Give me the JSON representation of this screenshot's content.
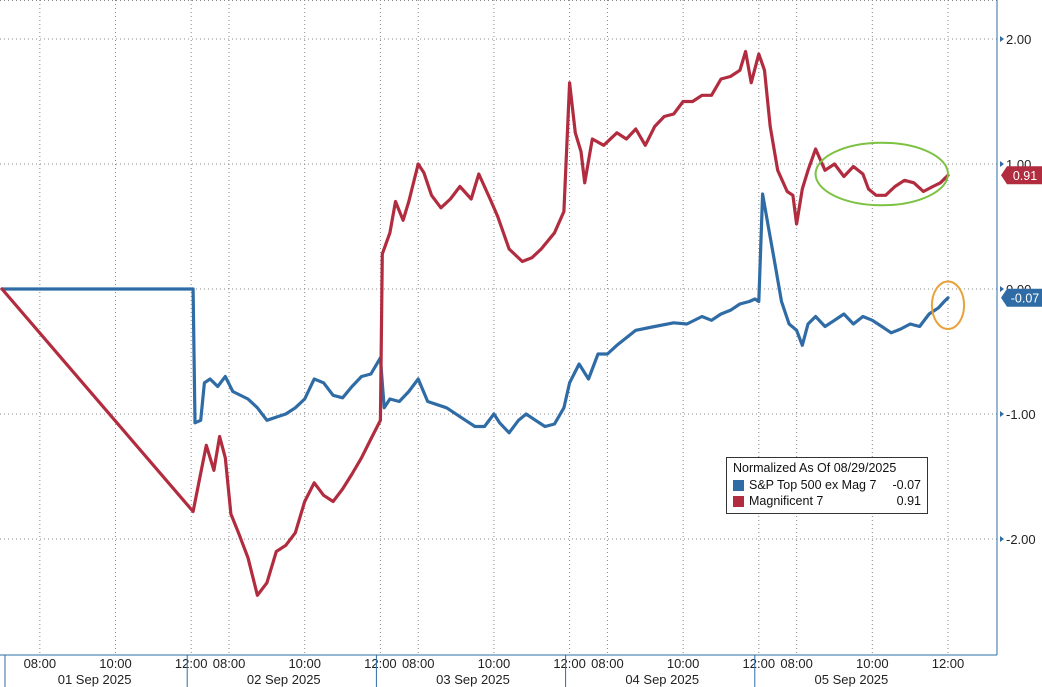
{
  "chart_data": {
    "type": "line",
    "legend": {
      "title": "Normalized As Of 08/29/2025",
      "placement": "bottom-right"
    },
    "y_axis": {
      "side": "right",
      "ylim": [
        -2.9,
        2.3
      ],
      "ticks": [
        {
          "value": 2,
          "label": "2.00"
        },
        {
          "value": 1,
          "label": "1.00"
        },
        {
          "value": 0,
          "label": "0.00"
        },
        {
          "value": -1,
          "label": "-1.00"
        },
        {
          "value": -2,
          "label": "-2.00"
        }
      ]
    },
    "x_axis": {
      "xlim": [
        0,
        5
      ],
      "time_ticks": [
        {
          "x": 0.2,
          "label": "08:00"
        },
        {
          "x": 0.6,
          "label": "10:00"
        },
        {
          "x": 1.0,
          "label": "12:00"
        },
        {
          "x": 1.2,
          "label": "08:00"
        },
        {
          "x": 1.6,
          "label": "10:00"
        },
        {
          "x": 2.0,
          "label": "12:00"
        },
        {
          "x": 2.2,
          "label": "08:00"
        },
        {
          "x": 2.6,
          "label": "10:00"
        },
        {
          "x": 3.0,
          "label": "12:00"
        },
        {
          "x": 3.2,
          "label": "08:00"
        },
        {
          "x": 3.6,
          "label": "10:00"
        },
        {
          "x": 4.0,
          "label": "12:00"
        },
        {
          "x": 4.2,
          "label": "08:00"
        },
        {
          "x": 4.6,
          "label": "10:00"
        },
        {
          "x": 5.0,
          "label": "12:00"
        }
      ],
      "day_labels": [
        {
          "x": 0.5,
          "label": "01 Sep 2025"
        },
        {
          "x": 1.5,
          "label": "02 Sep 2025"
        },
        {
          "x": 2.5,
          "label": "03 Sep 2025"
        },
        {
          "x": 3.5,
          "label": "04 Sep 2025"
        },
        {
          "x": 4.5,
          "label": "05 Sep 2025"
        }
      ]
    },
    "grid": true,
    "series": [
      {
        "name": "S&P Top 500 ex Mag 7",
        "color": "#2f6ca6",
        "last_value": -0.07,
        "last_label": "-0.07",
        "points": [
          [
            0,
            0
          ],
          [
            1.01,
            0
          ],
          [
            1.02,
            -1.07
          ],
          [
            1.05,
            -1.05
          ],
          [
            1.07,
            -0.75
          ],
          [
            1.1,
            -0.72
          ],
          [
            1.14,
            -0.78
          ],
          [
            1.18,
            -0.7
          ],
          [
            1.22,
            -0.82
          ],
          [
            1.3,
            -0.88
          ],
          [
            1.35,
            -0.95
          ],
          [
            1.4,
            -1.05
          ],
          [
            1.46,
            -1.02
          ],
          [
            1.5,
            -1.0
          ],
          [
            1.55,
            -0.95
          ],
          [
            1.6,
            -0.88
          ],
          [
            1.65,
            -0.72
          ],
          [
            1.7,
            -0.75
          ],
          [
            1.75,
            -0.85
          ],
          [
            1.8,
            -0.87
          ],
          [
            1.85,
            -0.78
          ],
          [
            1.9,
            -0.7
          ],
          [
            1.95,
            -0.68
          ],
          [
            2.0,
            -0.55
          ],
          [
            2.02,
            -0.95
          ],
          [
            2.05,
            -0.88
          ],
          [
            2.1,
            -0.9
          ],
          [
            2.15,
            -0.82
          ],
          [
            2.2,
            -0.72
          ],
          [
            2.25,
            -0.9
          ],
          [
            2.35,
            -0.95
          ],
          [
            2.45,
            -1.05
          ],
          [
            2.5,
            -1.1
          ],
          [
            2.55,
            -1.1
          ],
          [
            2.6,
            -1.0
          ],
          [
            2.63,
            -1.07
          ],
          [
            2.68,
            -1.15
          ],
          [
            2.73,
            -1.05
          ],
          [
            2.77,
            -1.0
          ],
          [
            2.82,
            -1.05
          ],
          [
            2.87,
            -1.1
          ],
          [
            2.92,
            -1.08
          ],
          [
            2.97,
            -0.95
          ],
          [
            3.0,
            -0.75
          ],
          [
            3.05,
            -0.6
          ],
          [
            3.1,
            -0.72
          ],
          [
            3.15,
            -0.52
          ],
          [
            3.2,
            -0.52
          ],
          [
            3.25,
            -0.45
          ],
          [
            3.35,
            -0.33
          ],
          [
            3.45,
            -0.3
          ],
          [
            3.55,
            -0.27
          ],
          [
            3.62,
            -0.28
          ],
          [
            3.7,
            -0.22
          ],
          [
            3.75,
            -0.25
          ],
          [
            3.8,
            -0.2
          ],
          [
            3.85,
            -0.17
          ],
          [
            3.9,
            -0.12
          ],
          [
            3.95,
            -0.1
          ],
          [
            3.98,
            -0.08
          ],
          [
            4.0,
            -0.1
          ],
          [
            4.02,
            0.76
          ],
          [
            4.05,
            0.5
          ],
          [
            4.08,
            0.25
          ],
          [
            4.12,
            -0.1
          ],
          [
            4.16,
            -0.28
          ],
          [
            4.2,
            -0.33
          ],
          [
            4.23,
            -0.45
          ],
          [
            4.26,
            -0.28
          ],
          [
            4.3,
            -0.22
          ],
          [
            4.35,
            -0.3
          ],
          [
            4.4,
            -0.25
          ],
          [
            4.45,
            -0.2
          ],
          [
            4.5,
            -0.28
          ],
          [
            4.55,
            -0.22
          ],
          [
            4.6,
            -0.25
          ],
          [
            4.65,
            -0.3
          ],
          [
            4.7,
            -0.35
          ],
          [
            4.75,
            -0.32
          ],
          [
            4.8,
            -0.28
          ],
          [
            4.85,
            -0.3
          ],
          [
            4.9,
            -0.2
          ],
          [
            4.95,
            -0.15
          ],
          [
            4.98,
            -0.1
          ],
          [
            5.0,
            -0.07
          ]
        ]
      },
      {
        "name": "Magnificent 7",
        "color": "#b22c3f",
        "last_value": 0.91,
        "last_label": "0.91",
        "points": [
          [
            0,
            0
          ],
          [
            1.01,
            -1.78
          ],
          [
            1.04,
            -1.55
          ],
          [
            1.08,
            -1.25
          ],
          [
            1.12,
            -1.45
          ],
          [
            1.15,
            -1.18
          ],
          [
            1.18,
            -1.35
          ],
          [
            1.21,
            -1.8
          ],
          [
            1.25,
            -1.95
          ],
          [
            1.3,
            -2.15
          ],
          [
            1.35,
            -2.45
          ],
          [
            1.4,
            -2.35
          ],
          [
            1.45,
            -2.1
          ],
          [
            1.5,
            -2.05
          ],
          [
            1.55,
            -1.95
          ],
          [
            1.6,
            -1.7
          ],
          [
            1.65,
            -1.55
          ],
          [
            1.7,
            -1.65
          ],
          [
            1.75,
            -1.7
          ],
          [
            1.8,
            -1.6
          ],
          [
            1.85,
            -1.48
          ],
          [
            1.9,
            -1.35
          ],
          [
            1.95,
            -1.2
          ],
          [
            2.0,
            -1.05
          ],
          [
            2.01,
            0.28
          ],
          [
            2.05,
            0.45
          ],
          [
            2.08,
            0.7
          ],
          [
            2.12,
            0.55
          ],
          [
            2.15,
            0.7
          ],
          [
            2.2,
            1.0
          ],
          [
            2.23,
            0.93
          ],
          [
            2.27,
            0.75
          ],
          [
            2.32,
            0.65
          ],
          [
            2.37,
            0.72
          ],
          [
            2.42,
            0.82
          ],
          [
            2.48,
            0.72
          ],
          [
            2.52,
            0.92
          ],
          [
            2.58,
            0.72
          ],
          [
            2.62,
            0.58
          ],
          [
            2.68,
            0.32
          ],
          [
            2.75,
            0.22
          ],
          [
            2.8,
            0.25
          ],
          [
            2.85,
            0.32
          ],
          [
            2.92,
            0.45
          ],
          [
            2.97,
            0.62
          ],
          [
            3.0,
            1.65
          ],
          [
            3.03,
            1.25
          ],
          [
            3.06,
            1.1
          ],
          [
            3.08,
            0.85
          ],
          [
            3.12,
            1.2
          ],
          [
            3.18,
            1.15
          ],
          [
            3.25,
            1.25
          ],
          [
            3.3,
            1.2
          ],
          [
            3.35,
            1.28
          ],
          [
            3.4,
            1.15
          ],
          [
            3.45,
            1.3
          ],
          [
            3.5,
            1.38
          ],
          [
            3.55,
            1.4
          ],
          [
            3.6,
            1.5
          ],
          [
            3.65,
            1.5
          ],
          [
            3.7,
            1.55
          ],
          [
            3.75,
            1.55
          ],
          [
            3.8,
            1.68
          ],
          [
            3.85,
            1.7
          ],
          [
            3.9,
            1.75
          ],
          [
            3.93,
            1.9
          ],
          [
            3.96,
            1.65
          ],
          [
            4.0,
            1.88
          ],
          [
            4.03,
            1.75
          ],
          [
            4.06,
            1.3
          ],
          [
            4.1,
            0.95
          ],
          [
            4.15,
            0.78
          ],
          [
            4.18,
            0.75
          ],
          [
            4.2,
            0.52
          ],
          [
            4.23,
            0.8
          ],
          [
            4.26,
            0.95
          ],
          [
            4.3,
            1.12
          ],
          [
            4.35,
            0.95
          ],
          [
            4.4,
            1.0
          ],
          [
            4.45,
            0.9
          ],
          [
            4.5,
            0.98
          ],
          [
            4.55,
            0.92
          ],
          [
            4.58,
            0.8
          ],
          [
            4.62,
            0.75
          ],
          [
            4.67,
            0.75
          ],
          [
            4.72,
            0.82
          ],
          [
            4.77,
            0.87
          ],
          [
            4.82,
            0.85
          ],
          [
            4.87,
            0.78
          ],
          [
            4.92,
            0.82
          ],
          [
            4.96,
            0.85
          ],
          [
            5.0,
            0.91
          ]
        ]
      }
    ],
    "annotations": [
      {
        "shape": "ellipse",
        "color": "#7cc242",
        "cx": 4.65,
        "cy": 0.92,
        "rx": 0.35,
        "ry": 0.25
      },
      {
        "shape": "ellipse",
        "color": "#e8a23a",
        "cx": 5.0,
        "cy": -0.13,
        "rx": 0.085,
        "ry": 0.19
      }
    ]
  }
}
